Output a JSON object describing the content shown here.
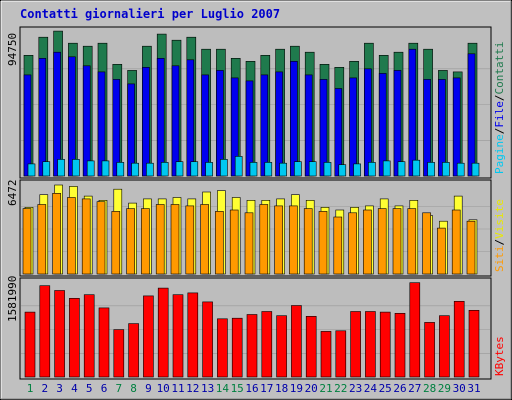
{
  "title": "Contatti giornalieri per Luglio 2007",
  "colors": {
    "frame_bg": "#c0c0c0",
    "panel_bg": "#bdbdbd",
    "title": "#0000cc",
    "contatti": "#1f7a4d",
    "file": "#0000ee",
    "pagine": "#00c8f0",
    "visite": "#ffff33",
    "siti": "#ff9900",
    "kbytes": "#ff0000",
    "weekend_day": "#008040",
    "weekday": "#0000aa"
  },
  "chart_data": [
    {
      "type": "bar",
      "panel": "top",
      "ymax_label": "94750",
      "ylim": [
        0,
        94750
      ],
      "legend": [
        "Pagine",
        "/",
        "File",
        "/",
        "Contatti"
      ],
      "categories": [
        "1",
        "2",
        "3",
        "4",
        "5",
        "6",
        "7",
        "8",
        "9",
        "10",
        "11",
        "12",
        "13",
        "14",
        "15",
        "16",
        "17",
        "18",
        "19",
        "20",
        "21",
        "22",
        "23",
        "24",
        "25",
        "26",
        "27",
        "28",
        "29",
        "30",
        "31"
      ],
      "series": [
        {
          "name": "Contatti",
          "values": [
            80000,
            92000,
            96000,
            88000,
            86000,
            88000,
            74000,
            70000,
            86000,
            94000,
            90000,
            92000,
            84000,
            84000,
            78000,
            76000,
            80000,
            84000,
            86000,
            82000,
            74000,
            72000,
            76000,
            88000,
            80000,
            82000,
            88000,
            84000,
            70000,
            69000,
            88000
          ]
        },
        {
          "name": "File",
          "values": [
            67000,
            78000,
            82000,
            79000,
            73000,
            69000,
            64000,
            61000,
            72000,
            78000,
            73000,
            77000,
            67000,
            70000,
            65000,
            63000,
            67000,
            69000,
            76000,
            67000,
            64000,
            58000,
            65000,
            71000,
            68000,
            70000,
            84000,
            64000,
            64000,
            65000,
            81000
          ]
        },
        {
          "name": "Pagine",
          "values": [
            8000,
            9500,
            11000,
            11000,
            10000,
            10000,
            9000,
            8500,
            8500,
            9000,
            9500,
            9500,
            9000,
            11000,
            13000,
            9000,
            9000,
            8500,
            9500,
            9500,
            9000,
            7500,
            8000,
            9000,
            10000,
            9500,
            10500,
            9000,
            9000,
            8500,
            8500
          ]
        }
      ]
    },
    {
      "type": "bar",
      "panel": "middle",
      "ymax_label": "6472",
      "ylim": [
        0,
        6472
      ],
      "legend": [
        "Siti",
        "/",
        "Visite"
      ],
      "categories": [
        "1",
        "2",
        "3",
        "4",
        "5",
        "6",
        "7",
        "8",
        "9",
        "10",
        "11",
        "12",
        "13",
        "14",
        "15",
        "16",
        "17",
        "18",
        "19",
        "20",
        "21",
        "22",
        "23",
        "24",
        "25",
        "26",
        "27",
        "28",
        "29",
        "30",
        "31"
      ],
      "series": [
        {
          "name": "Visite",
          "values": [
            4800,
            5700,
            6400,
            6300,
            5600,
            5300,
            6100,
            5100,
            5400,
            5400,
            5500,
            5400,
            5900,
            6000,
            5500,
            5300,
            5300,
            5400,
            5700,
            5300,
            4800,
            4600,
            4800,
            4900,
            5400,
            4900,
            5300,
            4200,
            3800,
            5600,
            3900
          ]
        },
        {
          "name": "Siti",
          "values": [
            4700,
            5000,
            5800,
            5500,
            5400,
            5200,
            4500,
            4700,
            4700,
            5000,
            5000,
            4900,
            5000,
            4500,
            4600,
            4400,
            5000,
            4900,
            4900,
            4700,
            4500,
            4100,
            4400,
            4600,
            4700,
            4700,
            4700,
            4400,
            3300,
            4600,
            3800
          ]
        }
      ]
    },
    {
      "type": "bar",
      "panel": "bottom",
      "ymax_label": "1581990",
      "ylim": [
        0,
        1581990
      ],
      "legend": [
        "KBytes"
      ],
      "categories": [
        "1",
        "2",
        "3",
        "4",
        "5",
        "6",
        "7",
        "8",
        "9",
        "10",
        "11",
        "12",
        "13",
        "14",
        "15",
        "16",
        "17",
        "18",
        "19",
        "20",
        "21",
        "22",
        "23",
        "24",
        "25",
        "26",
        "27",
        "28",
        "29",
        "30",
        "31"
      ],
      "series": [
        {
          "name": "KBytes",
          "values": [
            1080000,
            1520000,
            1440000,
            1310000,
            1370000,
            1150000,
            790000,
            890000,
            1350000,
            1480000,
            1370000,
            1400000,
            1250000,
            970000,
            980000,
            1040000,
            1090000,
            1020000,
            1190000,
            1010000,
            760000,
            770000,
            1090000,
            1090000,
            1080000,
            1060000,
            1570000,
            910000,
            1020000,
            1260000,
            1110000
          ]
        }
      ]
    }
  ],
  "x_axis": {
    "labels": [
      "1",
      "2",
      "3",
      "4",
      "5",
      "6",
      "7",
      "8",
      "9",
      "10",
      "11",
      "12",
      "13",
      "14",
      "15",
      "16",
      "17",
      "18",
      "19",
      "20",
      "21",
      "22",
      "23",
      "24",
      "25",
      "26",
      "27",
      "28",
      "29",
      "30",
      "31"
    ],
    "weekend_days": [
      "1",
      "7",
      "8",
      "14",
      "15",
      "21",
      "22",
      "28",
      "29"
    ]
  }
}
